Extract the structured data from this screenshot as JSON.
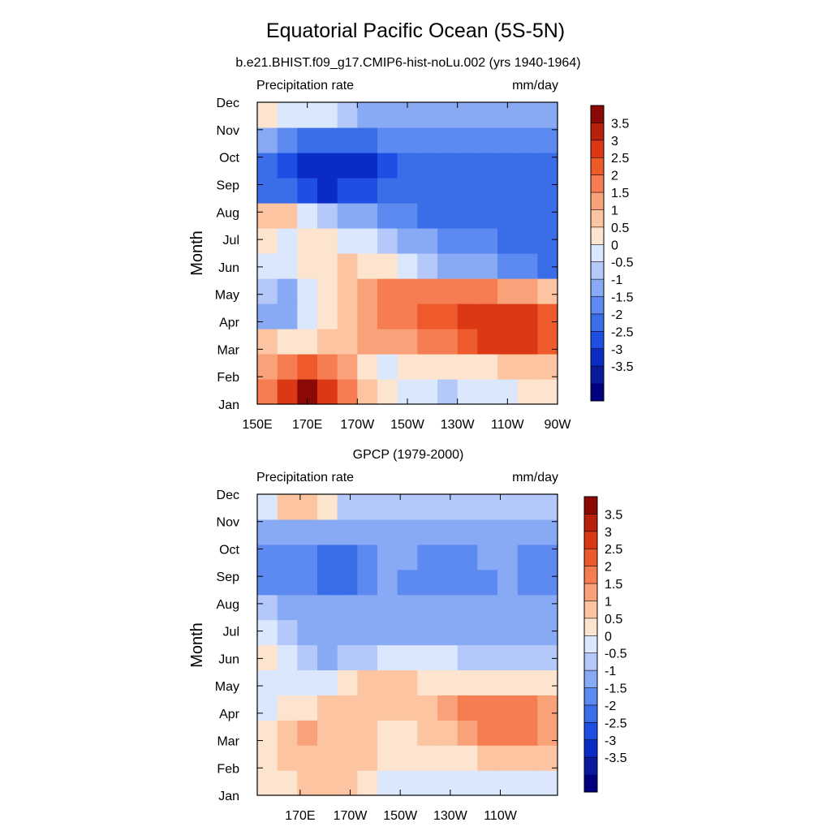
{
  "title": "Equatorial Pacific Ocean (5S-5N)",
  "palette": [
    "#00007f",
    "#0a1a9a",
    "#0b2bc6",
    "#1f4ee4",
    "#3a6de8",
    "#5d8af0",
    "#88aaf5",
    "#b4c8fa",
    "#dbe7fc",
    "#fde4cf",
    "#fcc4a0",
    "#f9a27a",
    "#f67c52",
    "#ee5a2c",
    "#dc3816",
    "#b8200a",
    "#8c0a05"
  ],
  "chart_data": [
    {
      "type": "heatmap",
      "subtitle": "b.e21.BHIST.f09_g17.CMIP6-hist-noLu.002 (yrs 1940-1964)",
      "left_label": "Precipitation rate",
      "right_label": "mm/day",
      "ylabel": "Month",
      "x_ticks": [
        "150E",
        "170E",
        "170W",
        "150W",
        "130W",
        "110W",
        "90W"
      ],
      "y_ticks": [
        "Jan",
        "Feb",
        "Mar",
        "Apr",
        "May",
        "Jun",
        "Jul",
        "Aug",
        "Sep",
        "Oct",
        "Nov",
        "Dec"
      ],
      "colorbar_labels": [
        "3.5",
        "3",
        "2.5",
        "2",
        "1.5",
        "1",
        "0.5",
        "0",
        "-0.5",
        "-1",
        "-1.5",
        "-2",
        "-2.5",
        "-3",
        "-3.5"
      ],
      "values": [
        [
          2.4,
          3.0,
          3.6,
          3.2,
          2.2,
          1.2,
          0.6,
          0.3,
          0.0,
          -0.2,
          0.0,
          0.2,
          0.4,
          0.6,
          0.6
        ],
        [
          1.6,
          2.2,
          2.6,
          2.4,
          1.6,
          0.8,
          0.4,
          0.6,
          0.6,
          0.5,
          0.6,
          0.8,
          1.0,
          1.2,
          1.4
        ],
        [
          1.2,
          0.6,
          0.6,
          1.0,
          1.4,
          1.6,
          1.6,
          1.8,
          2.0,
          2.4,
          2.8,
          3.1,
          3.4,
          3.1,
          2.8
        ],
        [
          -0.6,
          -1.0,
          0.3,
          0.6,
          1.4,
          1.8,
          2.0,
          2.2,
          2.6,
          2.8,
          3.0,
          3.2,
          3.2,
          3.0,
          2.8
        ],
        [
          -0.4,
          -0.6,
          0.4,
          0.6,
          1.2,
          1.8,
          2.0,
          2.2,
          2.2,
          2.2,
          2.0,
          2.0,
          1.8,
          1.6,
          1.4
        ],
        [
          0.2,
          0.2,
          0.6,
          0.8,
          1.0,
          0.8,
          0.6,
          0.2,
          -0.4,
          -0.6,
          -0.8,
          -1.0,
          -1.2,
          -1.4,
          -1.6
        ],
        [
          0.6,
          0.4,
          0.6,
          0.6,
          0.4,
          0.2,
          -0.2,
          -0.6,
          -1.0,
          -1.2,
          -1.4,
          -1.4,
          -1.6,
          -1.6,
          -1.6
        ],
        [
          1.0,
          1.2,
          0.4,
          -0.2,
          -0.6,
          -0.9,
          -1.2,
          -1.4,
          -1.6,
          -1.6,
          -1.8,
          -1.8,
          -1.8,
          -1.8,
          -1.8
        ],
        [
          -1.8,
          -2.0,
          -2.4,
          -2.6,
          -2.4,
          -2.2,
          -2.0,
          -2.0,
          -2.0,
          -2.0,
          -2.0,
          -2.0,
          -2.0,
          -2.0,
          -2.0
        ],
        [
          -1.8,
          -2.4,
          -2.6,
          -2.8,
          -3.0,
          -2.6,
          -2.4,
          -2.0,
          -2.0,
          -2.0,
          -2.0,
          -2.0,
          -2.0,
          -2.0,
          -2.0
        ],
        [
          -0.8,
          -1.2,
          -1.6,
          -1.8,
          -1.8,
          -1.6,
          -1.4,
          -1.4,
          -1.4,
          -1.4,
          -1.4,
          -1.4,
          -1.4,
          -1.4,
          -1.4
        ],
        [
          0.6,
          0.4,
          0.0,
          0.2,
          -0.2,
          -0.6,
          -0.8,
          -0.8,
          -0.8,
          -0.8,
          -0.8,
          -0.8,
          -0.8,
          -0.8,
          -0.8
        ]
      ]
    },
    {
      "type": "heatmap",
      "subtitle": "GPCP (1979-2000)",
      "left_label": "Precipitation rate",
      "right_label": "mm/day",
      "ylabel": "Month",
      "x_ticks": [
        "170E",
        "170W",
        "150W",
        "130W",
        "110W"
      ],
      "y_ticks": [
        "Jan",
        "Feb",
        "Mar",
        "Apr",
        "May",
        "Jun",
        "Jul",
        "Aug",
        "Sep",
        "Oct",
        "Nov",
        "Dec"
      ],
      "colorbar_labels": [
        "3.5",
        "3",
        "2.5",
        "2",
        "1.5",
        "1",
        "0.5",
        "0",
        "-0.5",
        "-1",
        "-1.5",
        "-2",
        "-2.5",
        "-3",
        "-3.5"
      ],
      "values": [
        [
          0.6,
          0.8,
          1.2,
          1.4,
          1.2,
          0.8,
          0.4,
          0.4,
          0.4,
          0.4,
          0.4,
          0.2,
          0.0,
          0.2,
          0.4
        ],
        [
          0.8,
          1.2,
          1.2,
          1.0,
          1.4,
          1.2,
          0.6,
          0.6,
          0.6,
          0.8,
          0.8,
          1.0,
          1.2,
          1.2,
          1.2
        ],
        [
          0.8,
          1.2,
          1.6,
          1.2,
          1.4,
          1.2,
          0.8,
          0.8,
          1.0,
          1.4,
          1.8,
          2.0,
          2.0,
          2.0,
          1.8
        ],
        [
          0.4,
          0.8,
          0.8,
          1.2,
          1.2,
          1.0,
          1.0,
          1.0,
          1.4,
          1.6,
          2.0,
          2.0,
          2.2,
          2.0,
          1.8
        ],
        [
          0.4,
          0.4,
          0.2,
          0.4,
          0.6,
          1.0,
          1.0,
          1.0,
          0.8,
          0.8,
          0.8,
          0.8,
          0.6,
          0.6,
          0.6
        ],
        [
          0.6,
          0.2,
          -0.4,
          -0.6,
          -0.4,
          -0.2,
          0.2,
          0.4,
          0.2,
          0.0,
          -0.2,
          -0.2,
          -0.2,
          -0.4,
          -0.4
        ],
        [
          0.4,
          -0.2,
          -0.6,
          -0.8,
          -0.6,
          -0.6,
          -0.6,
          -0.6,
          -0.6,
          -0.6,
          -0.6,
          -0.6,
          -0.6,
          -0.8,
          -0.8
        ],
        [
          -0.4,
          -0.8,
          -0.8,
          -1.0,
          -1.0,
          -0.8,
          -0.8,
          -1.0,
          -1.0,
          -1.0,
          -1.0,
          -1.0,
          -0.8,
          -1.0,
          -1.0
        ],
        [
          -1.4,
          -1.2,
          -1.4,
          -1.8,
          -1.6,
          -1.2,
          -1.0,
          -1.2,
          -1.2,
          -1.2,
          -1.2,
          -1.2,
          -1.0,
          -1.2,
          -1.2
        ],
        [
          -1.2,
          -1.2,
          -1.2,
          -1.6,
          -1.8,
          -1.2,
          -1.0,
          -1.0,
          -1.2,
          -1.2,
          -1.2,
          -1.0,
          -1.0,
          -1.2,
          -1.2
        ],
        [
          -0.8,
          -0.8,
          -0.8,
          -0.8,
          -0.8,
          -0.6,
          -0.6,
          -0.8,
          -0.8,
          -0.8,
          -0.8,
          -0.8,
          -0.8,
          -0.8,
          -0.8
        ],
        [
          0.2,
          1.2,
          1.4,
          0.6,
          -0.2,
          -0.4,
          -0.4,
          -0.4,
          -0.4,
          -0.4,
          -0.4,
          -0.4,
          -0.4,
          -0.4,
          -0.4
        ]
      ]
    }
  ]
}
